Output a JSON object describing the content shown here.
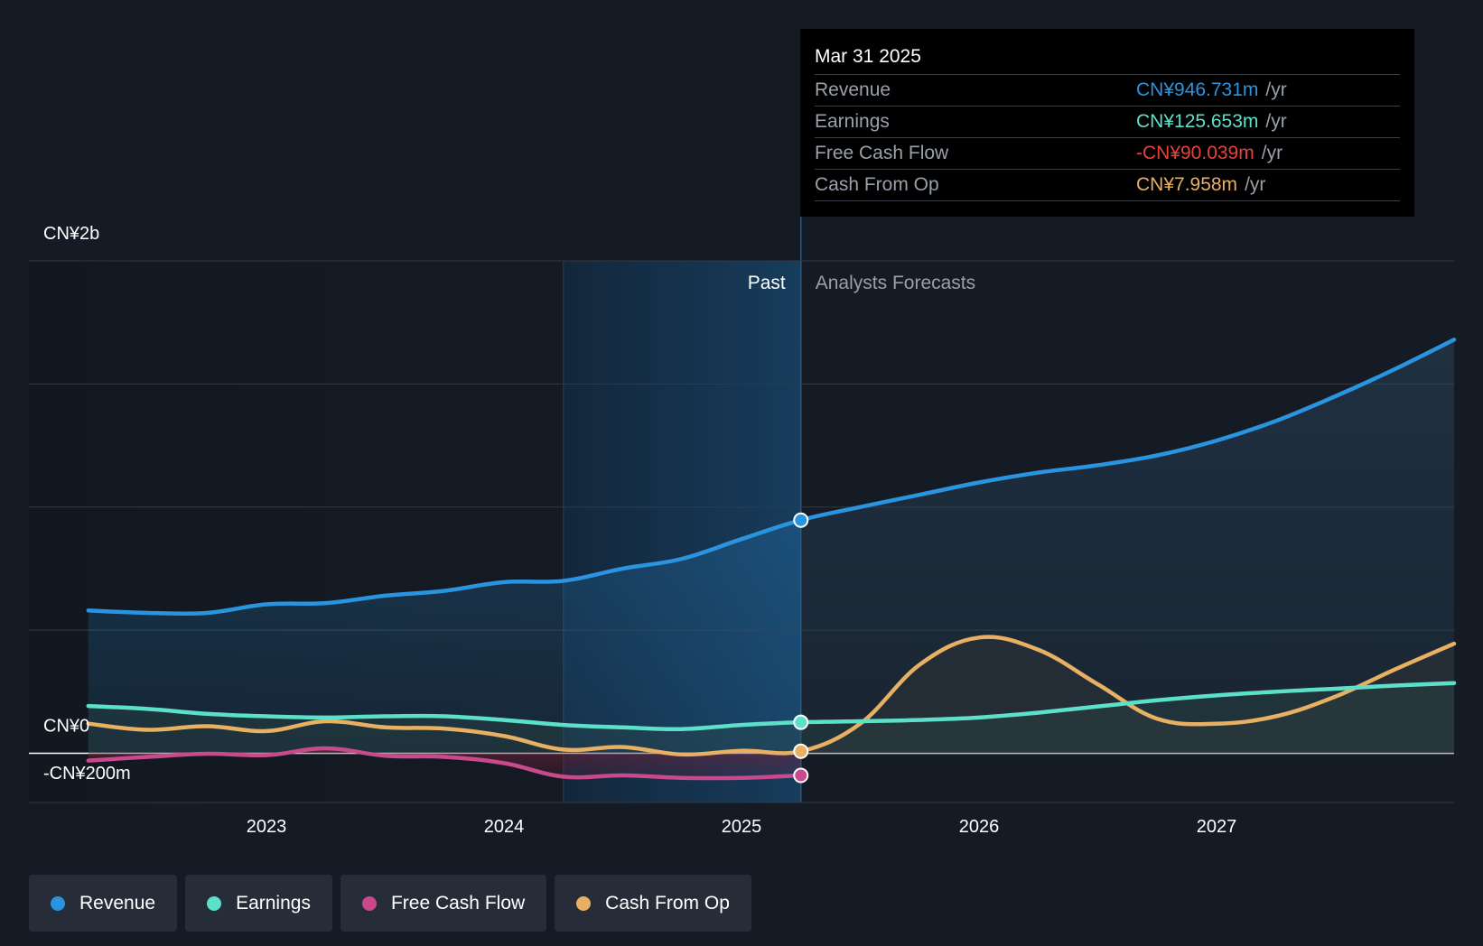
{
  "chart_data": {
    "type": "line",
    "currency_unit": "CN¥m",
    "y_axis": {
      "ylim": [
        -200,
        2000
      ],
      "tick_labels": [
        {
          "value": 2000,
          "label": "CN¥2b"
        },
        {
          "value": 0,
          "label": "CN¥0"
        },
        {
          "value": -200,
          "label": "-CN¥200m"
        }
      ],
      "gridlines": [
        2000,
        1500,
        1000,
        500,
        0,
        -200
      ]
    },
    "x_axis": {
      "xlim": [
        2022.0,
        2028.0
      ],
      "ticks": [
        {
          "value": 2023,
          "label": "2023"
        },
        {
          "value": 2024,
          "label": "2024"
        },
        {
          "value": 2025,
          "label": "2025"
        },
        {
          "value": 2026,
          "label": "2026"
        },
        {
          "value": 2027,
          "label": "2027"
        }
      ]
    },
    "regions": {
      "past_label": "Past",
      "forecast_label": "Analysts Forecasts",
      "highlight_start": 2024.25,
      "divider": 2025.25
    },
    "series": [
      {
        "name": "Revenue",
        "color": "#2b94e0",
        "x": [
          2022.25,
          2022.5,
          2022.75,
          2023.0,
          2023.25,
          2023.5,
          2023.75,
          2024.0,
          2024.25,
          2024.5,
          2024.75,
          2025.0,
          2025.25,
          2025.5,
          2025.75,
          2026.0,
          2026.25,
          2026.5,
          2026.75,
          2027.0,
          2027.25,
          2027.5,
          2027.75,
          2028.0
        ],
        "values": [
          580,
          570,
          570,
          605,
          610,
          640,
          660,
          695,
          700,
          750,
          790,
          870,
          947,
          1000,
          1050,
          1100,
          1140,
          1170,
          1210,
          1270,
          1350,
          1450,
          1560,
          1680
        ]
      },
      {
        "name": "Earnings",
        "color": "#5de0c9",
        "x": [
          2022.25,
          2022.5,
          2022.75,
          2023.0,
          2023.25,
          2023.5,
          2023.75,
          2024.0,
          2024.25,
          2024.5,
          2024.75,
          2025.0,
          2025.25,
          2025.5,
          2025.75,
          2026.0,
          2026.25,
          2026.5,
          2026.75,
          2027.0,
          2027.25,
          2027.5,
          2027.75,
          2028.0
        ],
        "values": [
          192,
          180,
          160,
          150,
          145,
          150,
          150,
          135,
          115,
          105,
          98,
          115,
          126,
          130,
          135,
          145,
          165,
          190,
          215,
          235,
          250,
          262,
          275,
          285
        ]
      },
      {
        "name": "Free Cash Flow",
        "color": "#c94a8a",
        "x": [
          2022.25,
          2022.5,
          2022.75,
          2023.0,
          2023.25,
          2023.5,
          2023.75,
          2024.0,
          2024.25,
          2024.5,
          2024.75,
          2025.0,
          2025.25
        ],
        "values": [
          -30,
          -15,
          -2,
          -8,
          20,
          -10,
          -15,
          -40,
          -95,
          -90,
          -100,
          -100,
          -90
        ]
      },
      {
        "name": "Cash From Op",
        "color": "#e7b063",
        "x": [
          2022.25,
          2022.5,
          2022.75,
          2023.0,
          2023.25,
          2023.5,
          2023.75,
          2024.0,
          2024.25,
          2024.5,
          2024.75,
          2025.0,
          2025.25,
          2025.5,
          2025.75,
          2026.0,
          2026.25,
          2026.5,
          2026.75,
          2027.0,
          2027.25,
          2027.5,
          2027.75,
          2028.0
        ],
        "values": [
          120,
          95,
          110,
          90,
          130,
          105,
          100,
          70,
          15,
          25,
          -5,
          10,
          8,
          120,
          360,
          470,
          420,
          280,
          140,
          120,
          150,
          230,
          340,
          445
        ]
      }
    ],
    "highlight_points": [
      {
        "series": "Revenue",
        "x": 2025.25,
        "value": 946.731
      },
      {
        "series": "Earnings",
        "x": 2025.25,
        "value": 125.653
      },
      {
        "series": "Cash From Op",
        "x": 2025.25,
        "value": 7.958
      },
      {
        "series": "Free Cash Flow",
        "x": 2025.25,
        "value": -90.039
      }
    ],
    "legend": [
      "Revenue",
      "Earnings",
      "Free Cash Flow",
      "Cash From Op"
    ]
  },
  "tooltip": {
    "date": "Mar 31 2025",
    "unit": "/yr",
    "rows": [
      {
        "name": "Revenue",
        "value": "CN¥946.731m",
        "color": "#2b94e0"
      },
      {
        "name": "Earnings",
        "value": "CN¥125.653m",
        "color": "#5de0c9"
      },
      {
        "name": "Free Cash Flow",
        "value": "-CN¥90.039m",
        "color": "#e8413d"
      },
      {
        "name": "Cash From Op",
        "value": "CN¥7.958m",
        "color": "#e7b063"
      }
    ]
  },
  "legend": {
    "items": [
      {
        "label": "Revenue",
        "color": "#2b94e0"
      },
      {
        "label": "Earnings",
        "color": "#5de0c9"
      },
      {
        "label": "Free Cash Flow",
        "color": "#c94a8a"
      },
      {
        "label": "Cash From Op",
        "color": "#e7b063"
      }
    ]
  }
}
